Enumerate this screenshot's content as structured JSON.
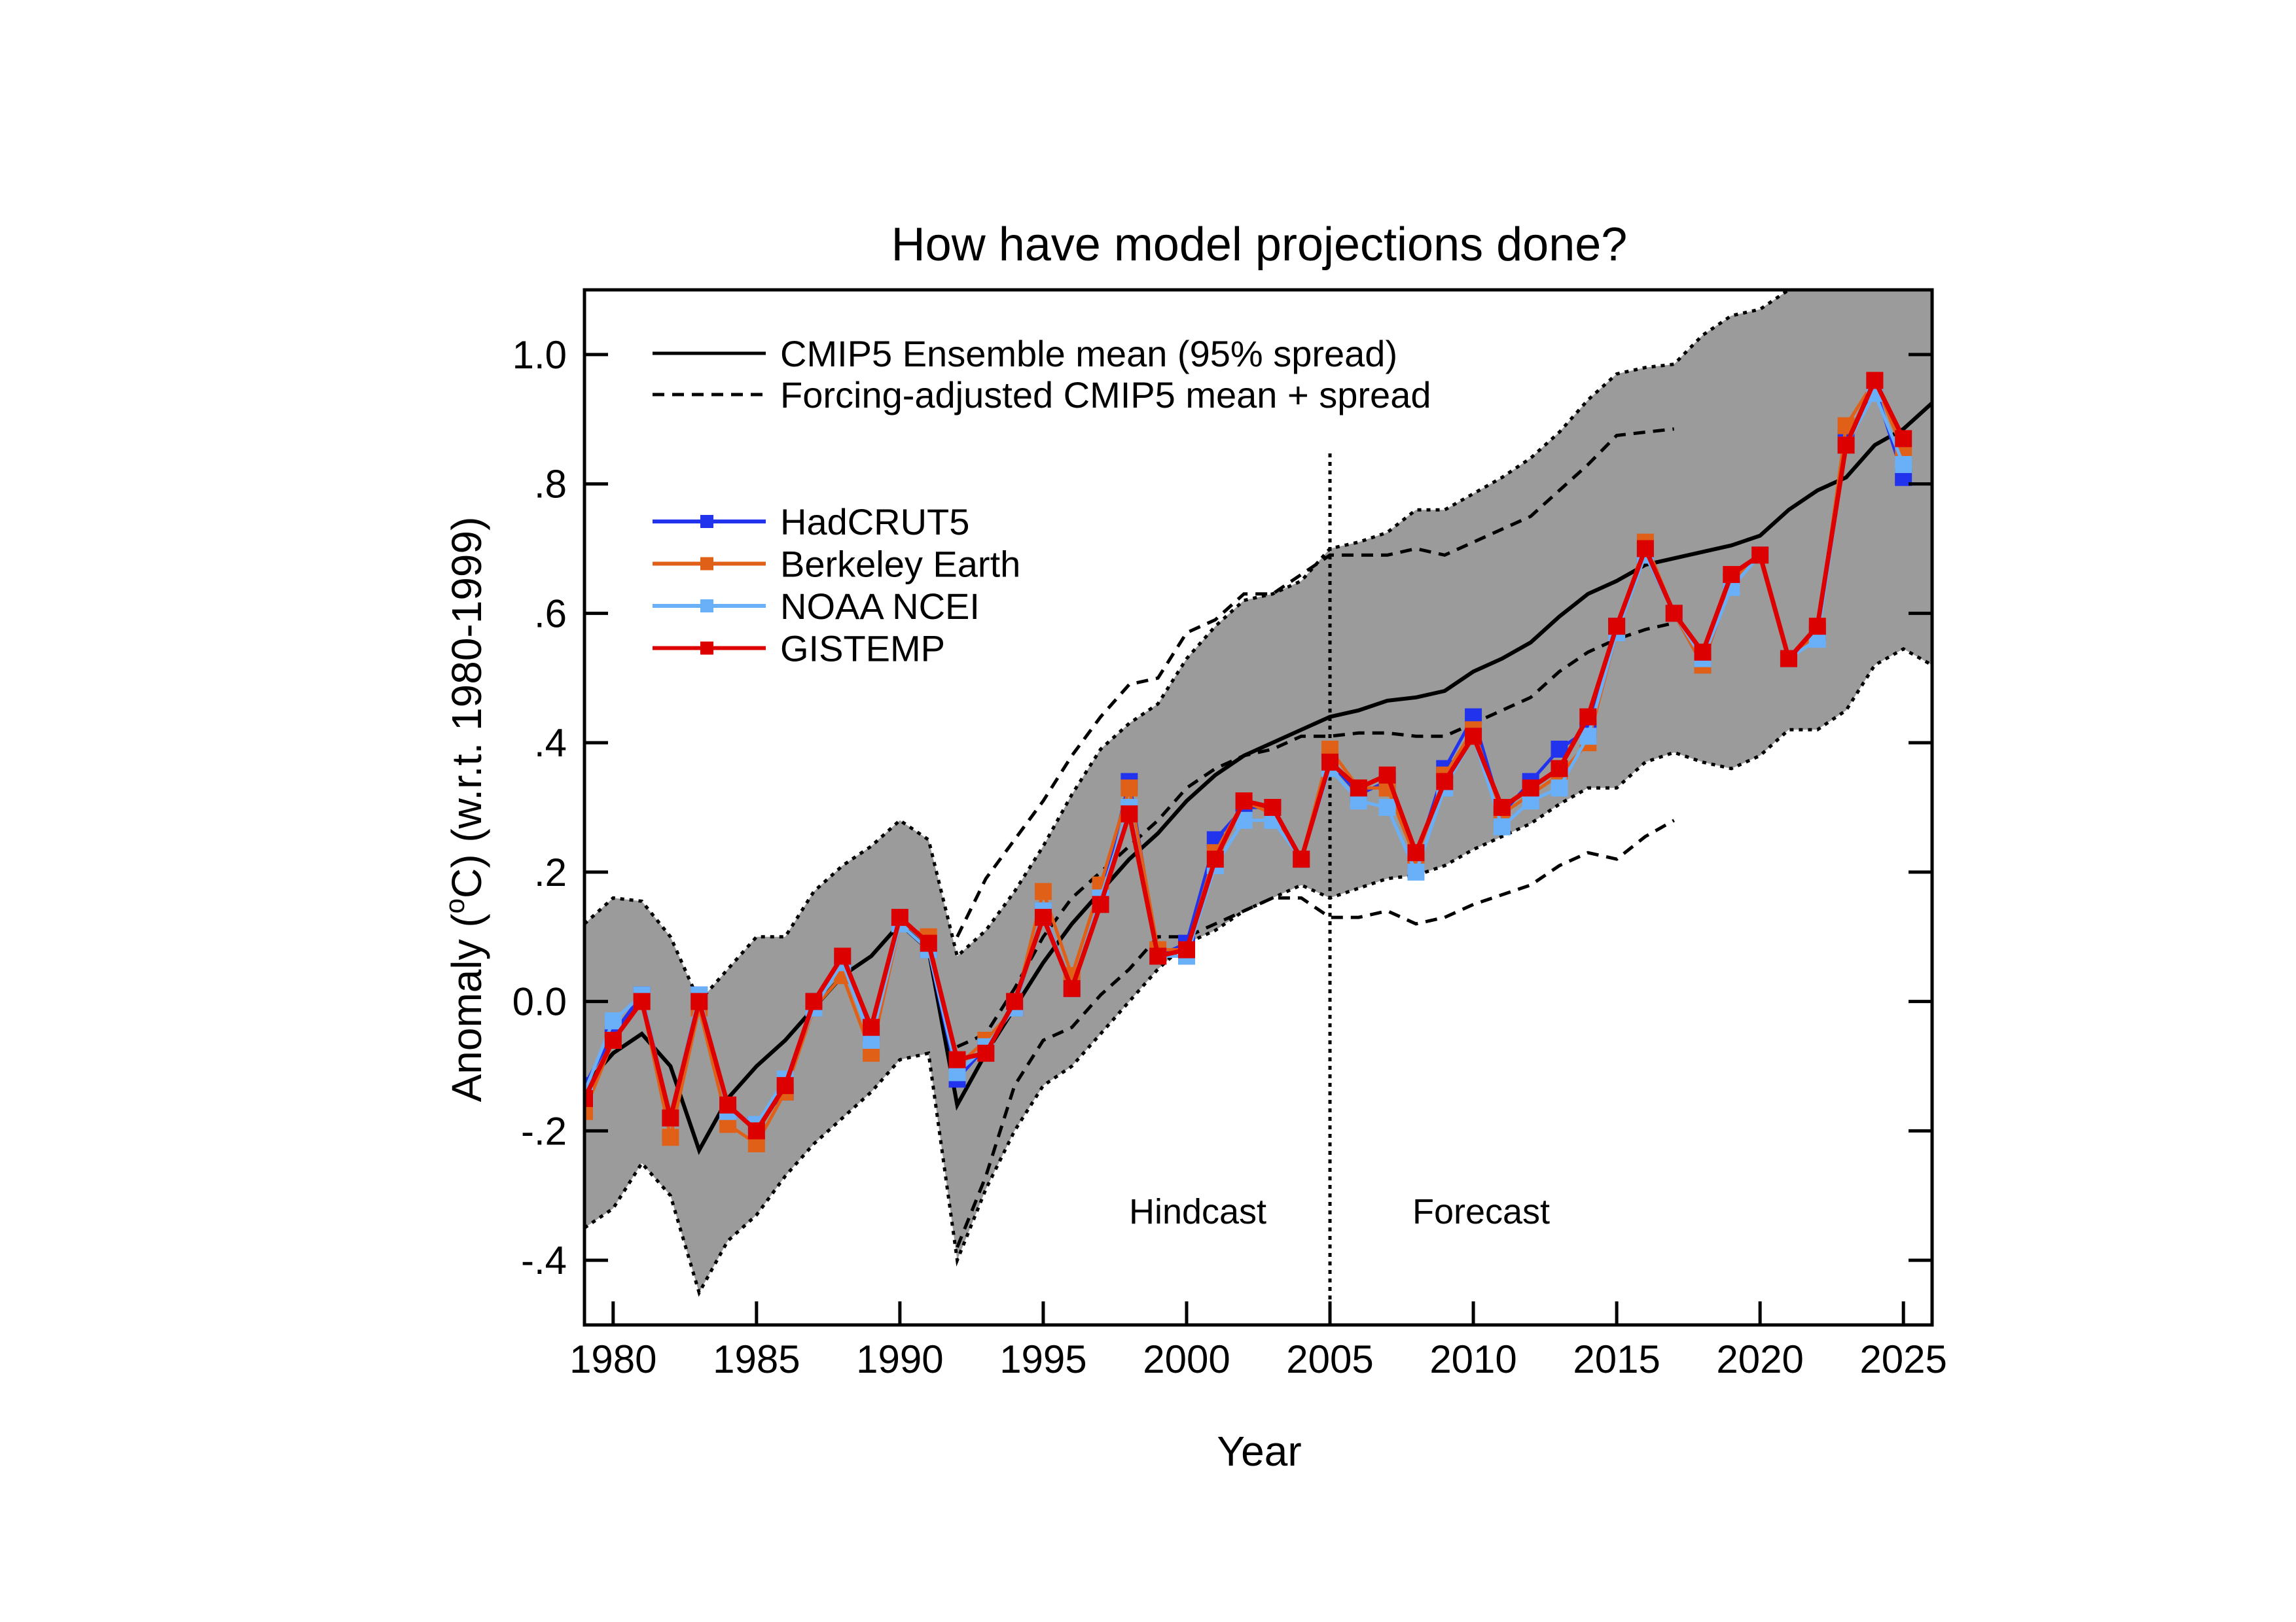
{
  "chart_data": {
    "type": "line",
    "title": "How have model projections done?",
    "xlabel": "Year",
    "ylabel": {
      "pre": "Anomaly (",
      "sup": "o",
      "post": "C) (w.r.t. 1980-1999)"
    },
    "xlim": [
      1979,
      2026
    ],
    "ylim": [
      -0.5,
      1.1
    ],
    "xticks": [
      1980,
      1985,
      1990,
      1995,
      2000,
      2005,
      2010,
      2015,
      2020,
      2025
    ],
    "xtick_labels": [
      "1980",
      "1985",
      "1990",
      "1995",
      "2000",
      "2005",
      "2010",
      "2015",
      "2020",
      "2025"
    ],
    "yticks": [
      1.0,
      0.8,
      0.6,
      0.4,
      0.2,
      0.0,
      -0.2,
      -0.4
    ],
    "ytick_labels": [
      "1.0",
      ".8",
      ".6",
      ".4",
      ".2",
      "0.0",
      "-.2",
      "-.4"
    ],
    "grid": false,
    "legend_position": "top-left",
    "annotations": {
      "hindcast": "Hindcast",
      "forecast": "Forecast",
      "divider_year": 2005
    },
    "model": {
      "name": "CMIP5 Ensemble mean (95% spread)",
      "years": [
        1979,
        1980,
        1981,
        1982,
        1983,
        1984,
        1985,
        1986,
        1987,
        1988,
        1989,
        1990,
        1991,
        1992,
        1993,
        1994,
        1995,
        1996,
        1997,
        1998,
        1999,
        2000,
        2001,
        2002,
        2003,
        2004,
        2005,
        2006,
        2007,
        2008,
        2009,
        2010,
        2011,
        2012,
        2013,
        2014,
        2015,
        2016,
        2017,
        2018,
        2019,
        2020,
        2021,
        2022,
        2023,
        2024,
        2025,
        2026
      ],
      "mean": [
        -0.13,
        -0.08,
        -0.05,
        -0.1,
        -0.23,
        -0.15,
        -0.1,
        -0.06,
        -0.01,
        0.04,
        0.07,
        0.12,
        0.08,
        -0.16,
        -0.08,
        -0.01,
        0.06,
        0.12,
        0.17,
        0.22,
        0.26,
        0.31,
        0.35,
        0.38,
        0.4,
        0.42,
        0.44,
        0.45,
        0.465,
        0.47,
        0.48,
        0.51,
        0.53,
        0.555,
        0.595,
        0.63,
        0.65,
        0.675,
        0.685,
        0.695,
        0.705,
        0.72,
        0.76,
        0.79,
        0.81,
        0.86,
        0.885,
        0.925
      ],
      "upper": [
        0.12,
        0.16,
        0.155,
        0.1,
        0.0,
        0.05,
        0.1,
        0.1,
        0.17,
        0.21,
        0.24,
        0.28,
        0.25,
        0.07,
        0.11,
        0.17,
        0.24,
        0.32,
        0.39,
        0.43,
        0.46,
        0.53,
        0.58,
        0.62,
        0.63,
        0.65,
        0.7,
        0.71,
        0.725,
        0.76,
        0.76,
        0.785,
        0.81,
        0.84,
        0.88,
        0.93,
        0.97,
        0.98,
        0.985,
        1.03,
        1.06,
        1.07,
        1.1,
        1.12,
        1.14,
        1.17,
        1.18,
        1.19
      ],
      "lower": [
        -0.35,
        -0.32,
        -0.25,
        -0.3,
        -0.45,
        -0.37,
        -0.33,
        -0.27,
        -0.22,
        -0.18,
        -0.14,
        -0.09,
        -0.08,
        -0.4,
        -0.29,
        -0.2,
        -0.13,
        -0.1,
        -0.05,
        0.0,
        0.05,
        0.09,
        0.11,
        0.14,
        0.16,
        0.18,
        0.16,
        0.175,
        0.19,
        0.195,
        0.21,
        0.235,
        0.255,
        0.275,
        0.305,
        0.33,
        0.33,
        0.37,
        0.385,
        0.37,
        0.36,
        0.38,
        0.42,
        0.42,
        0.45,
        0.52,
        0.545,
        0.52
      ]
    },
    "forcing_adjusted": {
      "name": "Forcing-adjusted CMIP5 mean + spread",
      "years": [
        1992,
        1993,
        1994,
        1995,
        1996,
        1997,
        1998,
        1999,
        2000,
        2001,
        2002,
        2003,
        2004,
        2005,
        2006,
        2007,
        2008,
        2009,
        2010,
        2011,
        2012,
        2013,
        2014,
        2015,
        2016,
        2017
      ],
      "upper": [
        0.1,
        0.19,
        0.25,
        0.31,
        0.38,
        0.44,
        0.49,
        0.5,
        0.57,
        0.59,
        0.63,
        0.63,
        0.66,
        0.69,
        0.69,
        0.69,
        0.7,
        0.69,
        0.71,
        0.73,
        0.75,
        0.79,
        0.83,
        0.875,
        0.88,
        0.885
      ],
      "mean": [
        -0.07,
        -0.05,
        0.02,
        0.1,
        0.16,
        0.2,
        0.24,
        0.28,
        0.33,
        0.36,
        0.38,
        0.39,
        0.41,
        0.41,
        0.415,
        0.415,
        0.41,
        0.41,
        0.43,
        0.45,
        0.47,
        0.51,
        0.54,
        0.56,
        0.575,
        0.585
      ],
      "lower": [
        -0.38,
        -0.27,
        -0.13,
        -0.06,
        -0.04,
        0.01,
        0.05,
        0.1,
        0.1,
        0.12,
        0.14,
        0.16,
        0.16,
        0.13,
        0.13,
        0.14,
        0.12,
        0.13,
        0.15,
        0.165,
        0.18,
        0.21,
        0.23,
        0.22,
        0.255,
        0.28
      ]
    },
    "obs_years": [
      1979,
      1980,
      1981,
      1982,
      1983,
      1984,
      1985,
      1986,
      1987,
      1988,
      1989,
      1990,
      1991,
      1992,
      1993,
      1994,
      1995,
      1996,
      1997,
      1998,
      1999,
      2000,
      2001,
      2002,
      2003,
      2004,
      2005,
      2006,
      2007,
      2008,
      2009,
      2010,
      2011,
      2012,
      2013,
      2014,
      2015,
      2016,
      2017,
      2018,
      2019,
      2020,
      2021,
      2022,
      2023,
      2024,
      2025
    ],
    "series": [
      {
        "name": "HadCRUT5",
        "color": "#2233ee",
        "values": [
          -0.13,
          -0.05,
          0.01,
          -0.18,
          0.01,
          -0.17,
          -0.19,
          -0.14,
          0.0,
          0.06,
          -0.05,
          0.12,
          0.08,
          -0.12,
          -0.07,
          -0.01,
          0.14,
          0.02,
          0.16,
          0.34,
          0.07,
          0.09,
          0.25,
          0.3,
          0.3,
          0.22,
          0.37,
          0.32,
          0.34,
          0.22,
          0.36,
          0.44,
          0.29,
          0.34,
          0.39,
          0.42,
          0.58,
          0.69,
          0.6,
          0.52,
          0.65,
          0.69,
          0.53,
          0.57,
          0.87,
          0.95,
          0.81
        ]
      },
      {
        "name": "Berkeley Earth",
        "color": "#e06018",
        "values": [
          -0.17,
          -0.06,
          0.0,
          -0.21,
          -0.01,
          -0.19,
          -0.22,
          -0.14,
          -0.01,
          0.04,
          -0.08,
          0.12,
          0.1,
          -0.1,
          -0.06,
          -0.01,
          0.17,
          0.04,
          0.18,
          0.33,
          0.08,
          0.08,
          0.23,
          0.31,
          0.29,
          0.22,
          0.39,
          0.33,
          0.33,
          0.22,
          0.35,
          0.42,
          0.29,
          0.32,
          0.35,
          0.4,
          0.57,
          0.71,
          0.6,
          0.52,
          0.65,
          0.69,
          0.53,
          0.57,
          0.89,
          0.96,
          0.85
        ]
      },
      {
        "name": "NOAA NCEI",
        "color": "#6ab0f8",
        "values": [
          -0.14,
          -0.03,
          0.01,
          -0.18,
          0.01,
          -0.17,
          -0.19,
          -0.12,
          -0.01,
          0.06,
          -0.06,
          0.12,
          0.08,
          -0.11,
          -0.07,
          -0.01,
          0.14,
          0.02,
          0.16,
          0.3,
          0.07,
          0.07,
          0.21,
          0.28,
          0.28,
          0.22,
          0.36,
          0.31,
          0.3,
          0.2,
          0.33,
          0.41,
          0.27,
          0.31,
          0.33,
          0.41,
          0.57,
          0.69,
          0.6,
          0.53,
          0.64,
          0.69,
          0.53,
          0.56,
          0.86,
          0.94,
          0.83
        ]
      },
      {
        "name": "GISTEMP",
        "color": "#dd0000",
        "values": [
          -0.15,
          -0.06,
          0.0,
          -0.18,
          0.0,
          -0.16,
          -0.2,
          -0.13,
          0.0,
          0.07,
          -0.04,
          0.13,
          0.09,
          -0.09,
          -0.08,
          0.0,
          0.13,
          0.02,
          0.15,
          0.29,
          0.07,
          0.08,
          0.22,
          0.31,
          0.3,
          0.22,
          0.37,
          0.33,
          0.35,
          0.23,
          0.34,
          0.41,
          0.3,
          0.33,
          0.36,
          0.44,
          0.58,
          0.7,
          0.6,
          0.54,
          0.66,
          0.69,
          0.53,
          0.58,
          0.86,
          0.96,
          0.87
        ]
      }
    ],
    "band_color": "#9b9b9b"
  }
}
